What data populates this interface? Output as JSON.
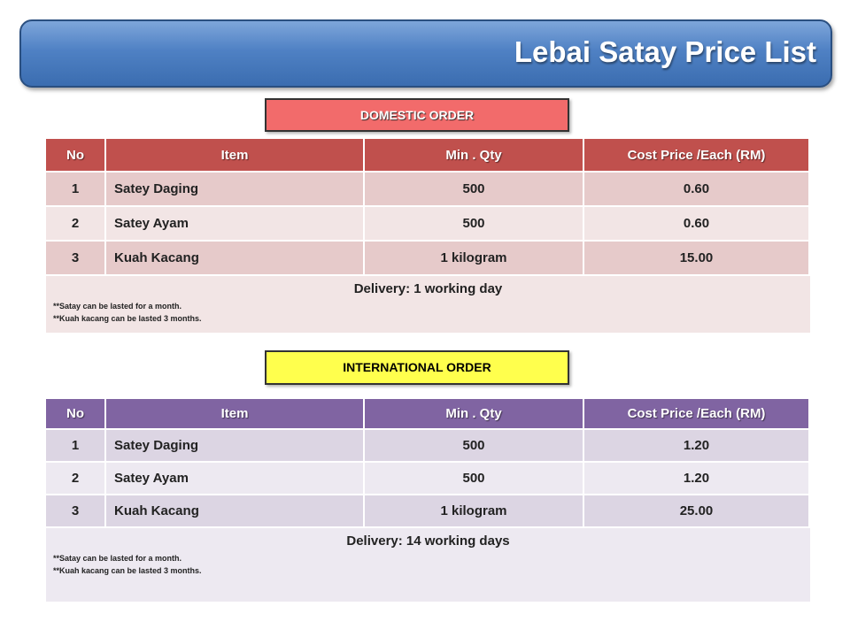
{
  "header": {
    "title": "Lebai Satay Price List"
  },
  "sections": [
    {
      "label": "DOMESTIC ORDER",
      "table": {
        "columns": [
          "No",
          "Item",
          "Min . Qty",
          "Cost Price /Each (RM)"
        ],
        "rows": [
          [
            "1",
            "Satey Daging",
            "500",
            "0.60"
          ],
          [
            "2",
            "Satey Ayam",
            "500",
            "0.60"
          ],
          [
            "3",
            "Kuah Kacang",
            "1 kilogram",
            "15.00"
          ]
        ],
        "delivery": "Delivery: 1 working day",
        "notes": [
          "**Satay can be lasted for a month.",
          "**Kuah kacang can be lasted 3 months."
        ]
      }
    },
    {
      "label": "INTERNATIONAL ORDER",
      "table": {
        "columns": [
          "No",
          "Item",
          "Min . Qty",
          "Cost Price /Each (RM)"
        ],
        "rows": [
          [
            "1",
            "Satey Daging",
            "500",
            "1.20"
          ],
          [
            "2",
            "Satey Ayam",
            "500",
            "1.20"
          ],
          [
            "3",
            "Kuah Kacang",
            "1 kilogram",
            "25.00"
          ]
        ],
        "delivery": "Delivery: 14 working days",
        "notes": [
          "**Satay can be lasted for a month.",
          "**Kuah kacang can be lasted 3 months."
        ]
      }
    }
  ]
}
